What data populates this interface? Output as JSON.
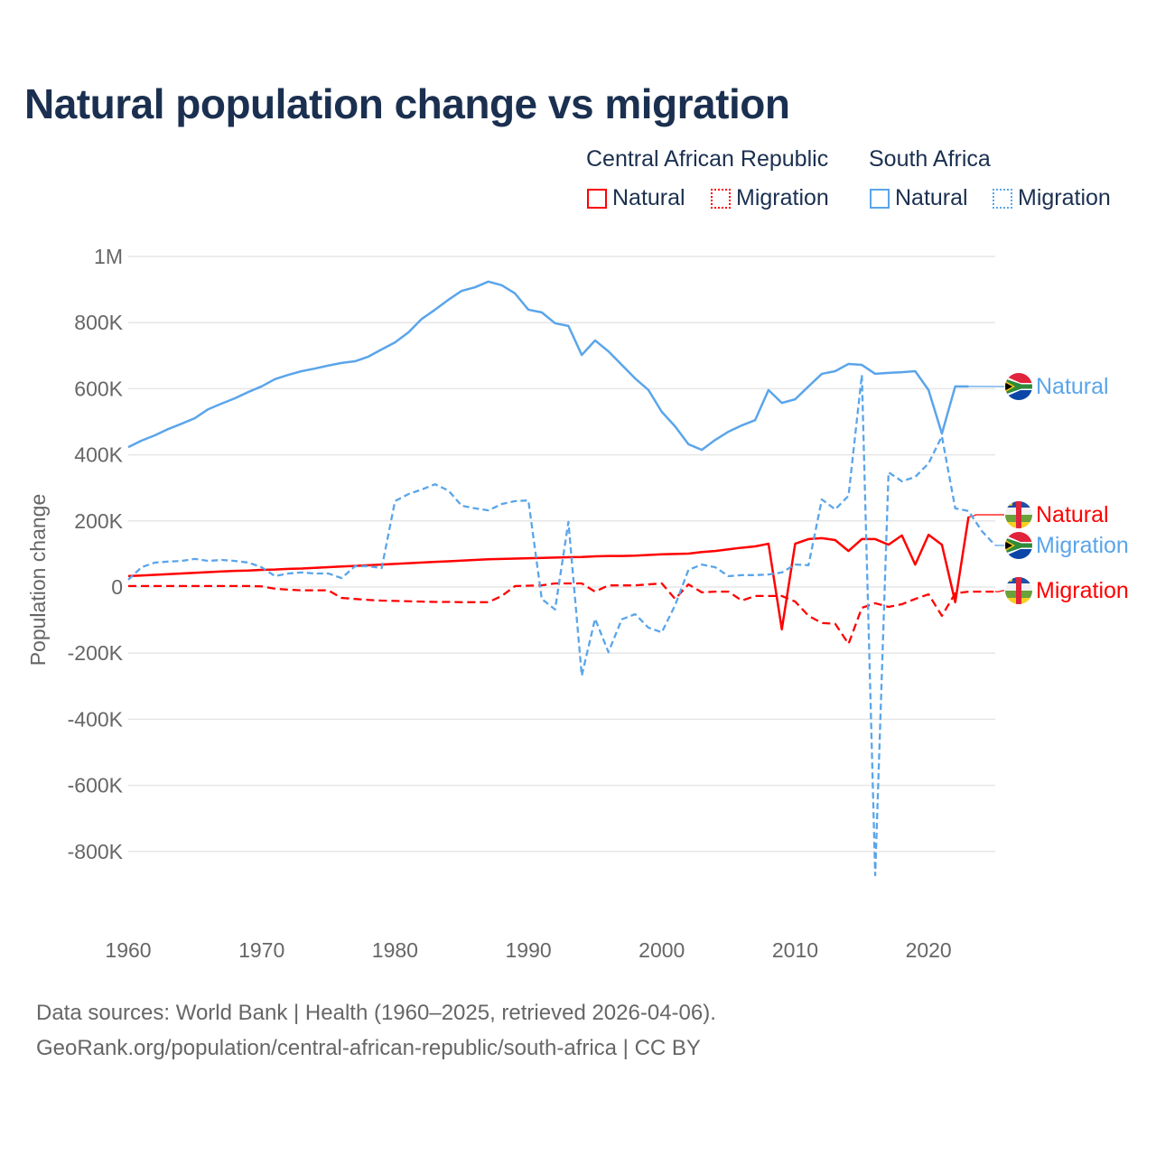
{
  "chart_data": {
    "type": "line",
    "title": "Natural population change vs migration",
    "ylabel": "Population change",
    "xlabel": "",
    "ylim": [
      -1000000,
      1000000
    ],
    "xlim": [
      1960,
      2025
    ],
    "value_unit": "thousands",
    "y_ticks": [
      {
        "value": 1000000,
        "label": "1M"
      },
      {
        "value": 800000,
        "label": "800K"
      },
      {
        "value": 600000,
        "label": "600K"
      },
      {
        "value": 400000,
        "label": "400K"
      },
      {
        "value": 200000,
        "label": "200K"
      },
      {
        "value": 0,
        "label": "0"
      },
      {
        "value": -200000,
        "label": "-200K"
      },
      {
        "value": -400000,
        "label": "-400K"
      },
      {
        "value": -600000,
        "label": "-600K"
      },
      {
        "value": -800000,
        "label": "-800K"
      }
    ],
    "x_ticks": [
      {
        "value": 1960,
        "label": "1960"
      },
      {
        "value": 1970,
        "label": "1970"
      },
      {
        "value": 1980,
        "label": "1980"
      },
      {
        "value": 1990,
        "label": "1990"
      },
      {
        "value": 2000,
        "label": "2000"
      },
      {
        "value": 2010,
        "label": "2010"
      },
      {
        "value": 2020,
        "label": "2020"
      }
    ],
    "grid": true,
    "legend_position": "top-right",
    "legend": {
      "groups": [
        {
          "country": "Central African Republic",
          "items": [
            "Natural",
            "Migration"
          ]
        },
        {
          "country": "South Africa",
          "items": [
            "Natural",
            "Migration"
          ]
        }
      ]
    },
    "series": [
      {
        "id": "car-natural",
        "country": "Central African Republic",
        "name": "Natural",
        "end_label": "Natural",
        "color": "#ff0000",
        "style": "solid",
        "flag": "central-african-republic",
        "start_year": 1960,
        "values": [
          33,
          35,
          37,
          39,
          41,
          43,
          45,
          47,
          49,
          50,
          52,
          53,
          55,
          56,
          58,
          60,
          62,
          64,
          66,
          68,
          70,
          72,
          74,
          76,
          78,
          80,
          82,
          84,
          85,
          86,
          87,
          88,
          89,
          90,
          91,
          93,
          94,
          94,
          95,
          97,
          99,
          100,
          101,
          106,
          109,
          114,
          119,
          123,
          131,
          -128,
          131,
          145,
          148,
          142,
          109,
          145,
          145,
          128,
          156,
          68,
          158,
          128,
          -46,
          213
        ]
      },
      {
        "id": "car-migration",
        "country": "Central African Republic",
        "name": "Migration",
        "end_label": "Migration",
        "color": "#ff0000",
        "style": "dashed",
        "flag": "central-african-republic",
        "start_year": 1960,
        "values": [
          3,
          3,
          3,
          3,
          3,
          3,
          3,
          3,
          3,
          3,
          2,
          -5,
          -8,
          -10,
          -10,
          -10,
          -33,
          -36,
          -39,
          -41,
          -42,
          -43,
          -44,
          -45,
          -45,
          -46,
          -46,
          -46,
          -27,
          3,
          4,
          5,
          11,
          11,
          11,
          -14,
          5,
          5,
          5,
          8,
          11,
          -36,
          8,
          -16,
          -14,
          -14,
          -41,
          -27,
          -27,
          -27,
          -44,
          -87,
          -109,
          -111,
          -172,
          -63,
          -49,
          -60,
          -52,
          -36,
          -22,
          -87,
          -19,
          -14,
          -14,
          -14
        ]
      },
      {
        "id": "sa-natural",
        "country": "South Africa",
        "name": "Natural",
        "end_label": "Natural",
        "color": "#5aa5ea",
        "style": "solid",
        "flag": "south-africa",
        "start_year": 1960,
        "values": [
          423,
          443,
          459,
          478,
          494,
          511,
          538,
          555,
          571,
          590,
          607,
          629,
          642,
          653,
          661,
          670,
          678,
          683,
          697,
          719,
          740,
          770,
          811,
          839,
          869,
          896,
          907,
          924,
          913,
          888,
          839,
          831,
          798,
          790,
          702,
          746,
          713,
          672,
          631,
          596,
          530,
          486,
          432,
          415,
          445,
          470,
          489,
          505,
          596,
          557,
          568,
          607,
          645,
          653,
          675,
          672,
          645,
          648,
          650,
          653,
          596,
          464,
          607,
          607
        ]
      },
      {
        "id": "sa-migration",
        "country": "South Africa",
        "name": "Migration",
        "end_label": "Migration",
        "color": "#5aa5ea",
        "style": "dashed",
        "flag": "south-africa",
        "start_year": 1960,
        "values": [
          22,
          60,
          74,
          77,
          79,
          85,
          79,
          82,
          79,
          74,
          60,
          33,
          41,
          44,
          41,
          41,
          27,
          63,
          63,
          57,
          260,
          281,
          295,
          311,
          292,
          246,
          238,
          232,
          251,
          260,
          262,
          -36,
          -68,
          197,
          -268,
          -96,
          -197,
          -98,
          -82,
          -123,
          -137,
          -55,
          52,
          68,
          60,
          33,
          36,
          36,
          38,
          44,
          68,
          66,
          265,
          235,
          276,
          642,
          -872,
          347,
          320,
          333,
          374,
          456,
          238,
          230,
          169,
          126
        ]
      }
    ]
  },
  "footer": {
    "line1": "Data sources: World Bank | Health (1960–2025, retrieved 2026-04-06).",
    "line2": "GeoRank.org/population/central-african-republic/south-africa | CC BY"
  }
}
